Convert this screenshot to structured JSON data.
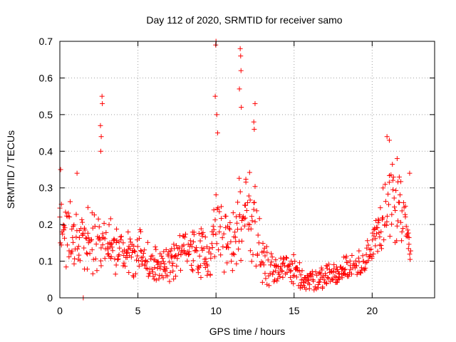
{
  "chart_data": {
    "type": "scatter",
    "title": "Day 112 of 2020, SRMTID for receiver samo",
    "xlabel": "GPS time / hours",
    "ylabel": "SRMTID / TECUs",
    "xlim": [
      0,
      24
    ],
    "ylim": [
      0,
      0.7
    ],
    "grid": true,
    "xticks": [
      0,
      5,
      10,
      15,
      20
    ],
    "xtick_labels": [
      "0",
      "5",
      "10",
      "15",
      "20"
    ],
    "yticks": [
      0,
      0.1,
      0.2,
      0.3,
      0.4,
      0.5,
      0.6,
      0.7
    ],
    "ytick_labels": [
      "0",
      "0.1",
      "0.2",
      "0.3",
      "0.4",
      "0.5",
      "0.6",
      "0.7"
    ],
    "series": [
      {
        "name": "SRMTID",
        "marker": "plus",
        "color": "#ff0000",
        "envelope": [
          {
            "x": 0.0,
            "base": 0.2,
            "spread": 0.12
          },
          {
            "x": 0.5,
            "base": 0.17,
            "spread": 0.09
          },
          {
            "x": 1.0,
            "base": 0.17,
            "spread": 0.1
          },
          {
            "x": 1.5,
            "base": 0.18,
            "spread": 0.11
          },
          {
            "x": 2.0,
            "base": 0.16,
            "spread": 0.1
          },
          {
            "x": 2.5,
            "base": 0.17,
            "spread": 0.12
          },
          {
            "x": 3.0,
            "base": 0.14,
            "spread": 0.1
          },
          {
            "x": 4.0,
            "base": 0.12,
            "spread": 0.07
          },
          {
            "x": 5.0,
            "base": 0.12,
            "spread": 0.08
          },
          {
            "x": 6.0,
            "base": 0.09,
            "spread": 0.06
          },
          {
            "x": 7.0,
            "base": 0.09,
            "spread": 0.06
          },
          {
            "x": 8.0,
            "base": 0.13,
            "spread": 0.08
          },
          {
            "x": 9.0,
            "base": 0.13,
            "spread": 0.09
          },
          {
            "x": 9.6,
            "base": 0.11,
            "spread": 0.07
          },
          {
            "x": 10.0,
            "base": 0.25,
            "spread": 0.16
          },
          {
            "x": 10.5,
            "base": 0.16,
            "spread": 0.12
          },
          {
            "x": 11.0,
            "base": 0.12,
            "spread": 0.1
          },
          {
            "x": 11.5,
            "base": 0.2,
            "spread": 0.14
          },
          {
            "x": 12.0,
            "base": 0.27,
            "spread": 0.16
          },
          {
            "x": 12.5,
            "base": 0.2,
            "spread": 0.14
          },
          {
            "x": 13.0,
            "base": 0.1,
            "spread": 0.07
          },
          {
            "x": 14.0,
            "base": 0.08,
            "spread": 0.05
          },
          {
            "x": 15.0,
            "base": 0.07,
            "spread": 0.05
          },
          {
            "x": 16.0,
            "base": 0.05,
            "spread": 0.04
          },
          {
            "x": 17.0,
            "base": 0.06,
            "spread": 0.04
          },
          {
            "x": 18.0,
            "base": 0.07,
            "spread": 0.05
          },
          {
            "x": 19.0,
            "base": 0.09,
            "spread": 0.05
          },
          {
            "x": 20.0,
            "base": 0.12,
            "spread": 0.07
          },
          {
            "x": 20.5,
            "base": 0.2,
            "spread": 0.1
          },
          {
            "x": 21.0,
            "base": 0.27,
            "spread": 0.14
          },
          {
            "x": 21.5,
            "base": 0.25,
            "spread": 0.13
          },
          {
            "x": 22.0,
            "base": 0.2,
            "spread": 0.12
          },
          {
            "x": 22.5,
            "base": 0.13,
            "spread": 0.08
          }
        ],
        "spikes": [
          {
            "x": 0.05,
            "y": 0.35
          },
          {
            "x": 1.1,
            "y": 0.34
          },
          {
            "x": 2.7,
            "y": 0.55
          },
          {
            "x": 2.72,
            "y": 0.53
          },
          {
            "x": 2.6,
            "y": 0.47
          },
          {
            "x": 2.65,
            "y": 0.44
          },
          {
            "x": 2.62,
            "y": 0.4
          },
          {
            "x": 10.0,
            "y": 0.7
          },
          {
            "x": 9.98,
            "y": 0.69
          },
          {
            "x": 9.95,
            "y": 0.55
          },
          {
            "x": 10.05,
            "y": 0.5
          },
          {
            "x": 10.1,
            "y": 0.45
          },
          {
            "x": 11.55,
            "y": 0.68
          },
          {
            "x": 11.58,
            "y": 0.66
          },
          {
            "x": 11.6,
            "y": 0.62
          },
          {
            "x": 11.5,
            "y": 0.57
          },
          {
            "x": 11.62,
            "y": 0.52
          },
          {
            "x": 12.5,
            "y": 0.53
          },
          {
            "x": 12.42,
            "y": 0.48
          },
          {
            "x": 12.45,
            "y": 0.46
          },
          {
            "x": 20.95,
            "y": 0.44
          },
          {
            "x": 21.1,
            "y": 0.43
          },
          {
            "x": 21.6,
            "y": 0.38
          },
          {
            "x": 22.4,
            "y": 0.34
          },
          {
            "x": 1.5,
            "y": 0.0
          }
        ]
      }
    ]
  }
}
